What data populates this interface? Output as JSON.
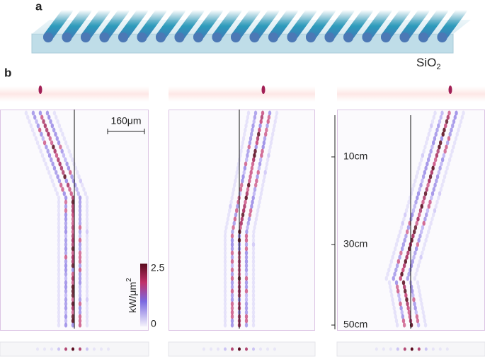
{
  "panel_a": {
    "label": "a",
    "material": {
      "text": "SiO",
      "subscript": "2"
    }
  },
  "panel_b": {
    "label": "b",
    "scale_bar": "160μm",
    "distance_ticks": [
      "10cm",
      "30cm",
      "50cm"
    ],
    "colorbar": {
      "max": "2.5",
      "min": "0",
      "unit": "kW/μm",
      "unit_power": "2"
    }
  }
}
